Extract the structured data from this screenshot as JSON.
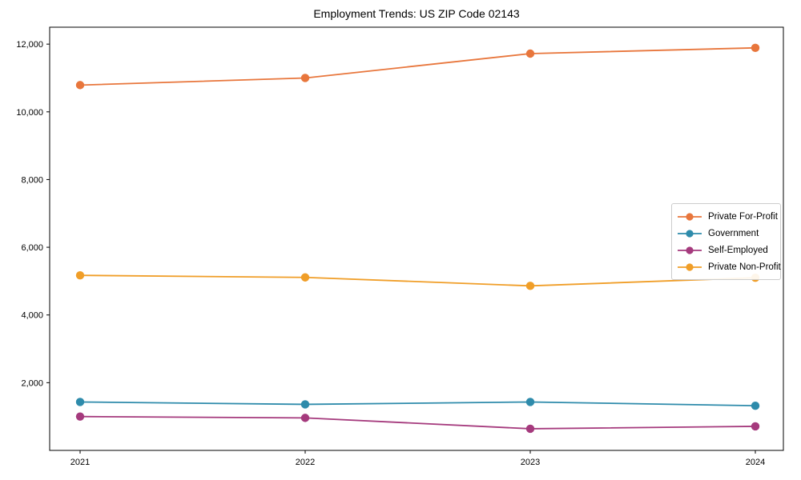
{
  "figure": {
    "background_color": "#ffffff",
    "frame_color": "#000000"
  },
  "chart_data": {
    "type": "line",
    "title": "Employment Trends: US ZIP Code 02143",
    "xlabel": "",
    "ylabel": "",
    "x_categories": [
      "2021",
      "2022",
      "2023",
      "2024"
    ],
    "series": [
      {
        "name": "Private For-Profit",
        "color": "#e8763c",
        "marker": "circle",
        "values": [
          10790,
          11000,
          11720,
          11890
        ]
      },
      {
        "name": "Government",
        "color": "#2e8bab",
        "marker": "circle",
        "values": [
          1430,
          1360,
          1430,
          1320
        ]
      },
      {
        "name": "Self-Employed",
        "color": "#a53a7d",
        "marker": "circle",
        "values": [
          1000,
          960,
          640,
          710
        ]
      },
      {
        "name": "Private Non-Profit",
        "color": "#f09e28",
        "marker": "circle",
        "values": [
          5170,
          5110,
          4860,
          5100
        ]
      }
    ],
    "ylim": [
      0,
      12500
    ],
    "y_ticks": [
      {
        "value": 2000,
        "label": "2,000"
      },
      {
        "value": 4000,
        "label": "4,000"
      },
      {
        "value": 6000,
        "label": "6,000"
      },
      {
        "value": 8000,
        "label": "8,000"
      },
      {
        "value": 10000,
        "label": "10,000"
      },
      {
        "value": 12000,
        "label": "12,000"
      }
    ],
    "grid": false,
    "legend_position": "right-middle"
  }
}
